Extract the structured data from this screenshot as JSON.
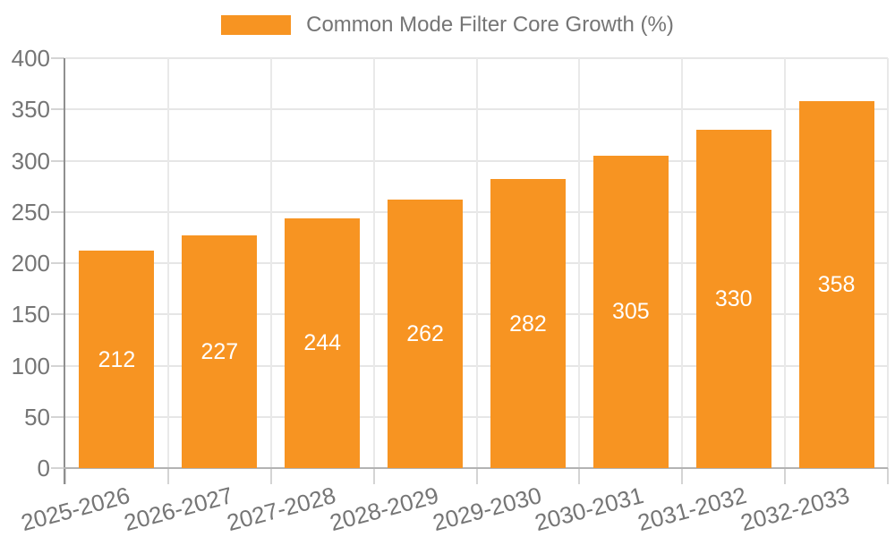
{
  "legend": {
    "label": "Common Mode Filter Core Growth (%)"
  },
  "chart_data": {
    "type": "bar",
    "title": "Common Mode Filter Core Growth (%)",
    "categories": [
      "2025-2026",
      "2026-2027",
      "2027-2028",
      "2028-2029",
      "2029-2030",
      "2030-2031",
      "2031-2032",
      "2032-2033"
    ],
    "values": [
      212,
      227,
      244,
      262,
      282,
      305,
      330,
      358
    ],
    "xlabel": "",
    "ylabel": "",
    "ylim": [
      0,
      400
    ],
    "yticks": [
      0,
      50,
      100,
      150,
      200,
      250,
      300,
      350,
      400
    ],
    "grid": true,
    "legend_position": "top-center",
    "bar_color": "#f79422",
    "value_label_color": "#ffffff",
    "axis_label_color": "#757575"
  }
}
